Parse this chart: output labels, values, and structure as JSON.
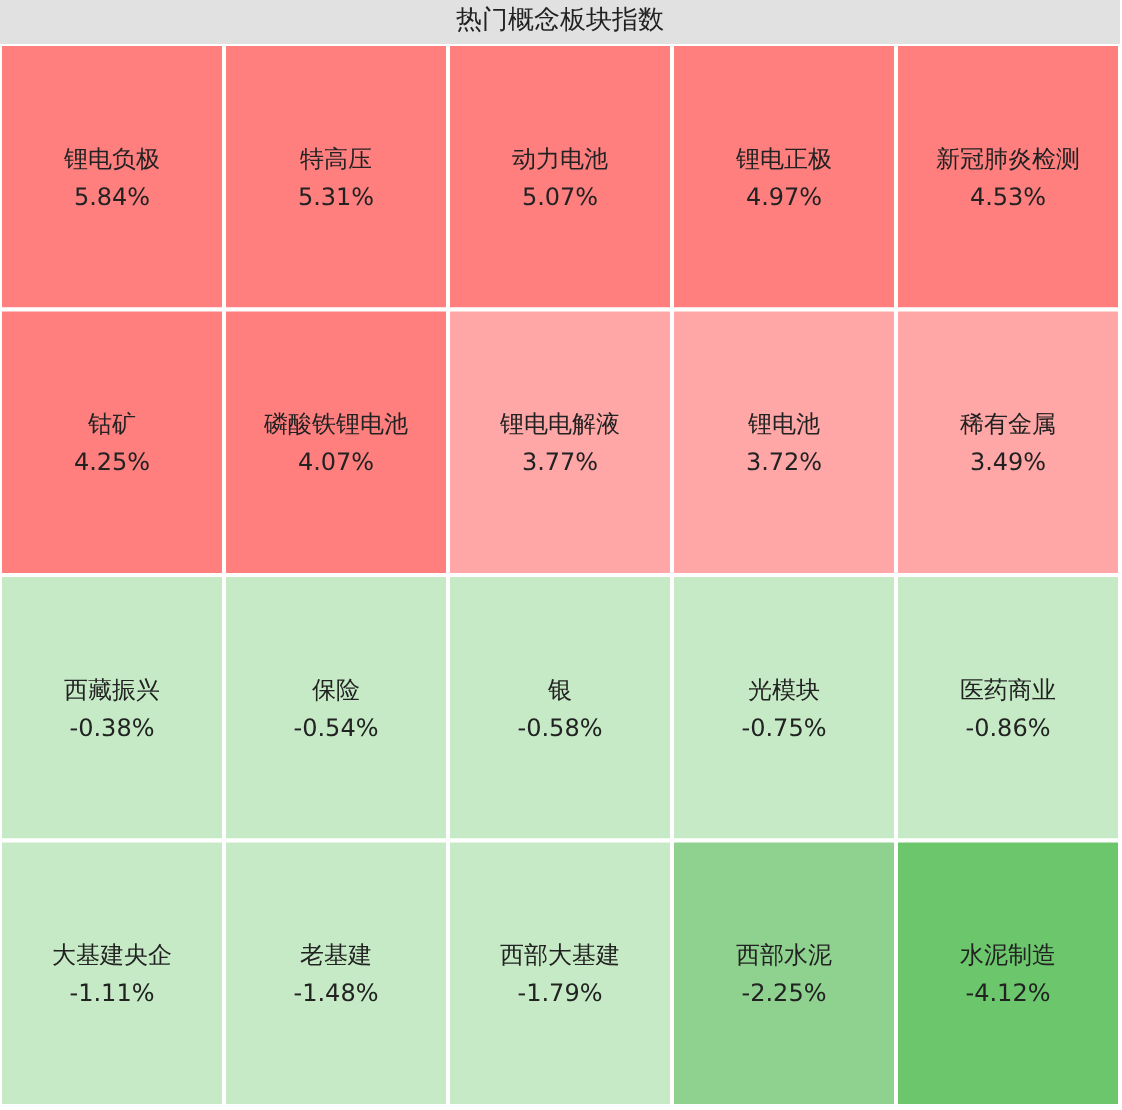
{
  "chart_data": {
    "type": "other",
    "title": "热门概念板块指数",
    "categories": [
      "锂电负极",
      "特高压",
      "动力电池",
      "锂电正极",
      "新冠肺炎检测",
      "钴矿",
      "磷酸铁锂电池",
      "锂电电解液",
      "锂电池",
      "稀有金属",
      "西藏振兴",
      "保险",
      "银",
      "光模块",
      "医药商业",
      "大基建央企",
      "老基建",
      "西部大基建",
      "西部水泥",
      "水泥制造"
    ],
    "values": [
      5.84,
      5.31,
      5.07,
      4.97,
      4.53,
      4.25,
      4.07,
      3.77,
      3.72,
      3.49,
      -0.38,
      -0.54,
      -0.58,
      -0.75,
      -0.86,
      -1.11,
      -1.48,
      -1.79,
      -2.25,
      -4.12
    ],
    "value_labels": [
      "5.84%",
      "5.31%",
      "5.07%",
      "4.97%",
      "4.53%",
      "4.25%",
      "4.07%",
      "3.77%",
      "3.72%",
      "3.49%",
      "-0.38%",
      "-0.54%",
      "-0.58%",
      "-0.75%",
      "-0.86%",
      "-1.11%",
      "-1.48%",
      "-1.79%",
      "-2.25%",
      "-4.12%"
    ],
    "colors": [
      "#ff7f7f",
      "#ff7f7f",
      "#ff7f7f",
      "#ff7f7f",
      "#ff7f7f",
      "#ff7f7f",
      "#ff7f7f",
      "#ffa6a6",
      "#ffa6a6",
      "#ffa6a6",
      "#c6eac6",
      "#c6eac6",
      "#c6eac6",
      "#c6eac6",
      "#c6eac6",
      "#c6eac6",
      "#c6eac6",
      "#c6eac6",
      "#8fd18f",
      "#6cc66c"
    ]
  }
}
